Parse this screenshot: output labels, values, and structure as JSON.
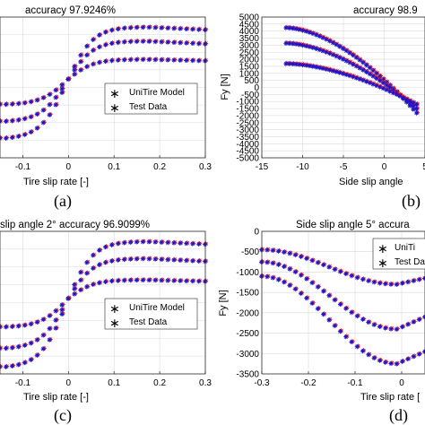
{
  "colors": {
    "model_marker": "#e0101c",
    "test_marker": "#1515d0",
    "grid": "#d9d9d9",
    "axis": "#262626"
  },
  "chart_data": [
    {
      "panel": "(a)",
      "type": "scatter",
      "title": "accuracy  97.9246%",
      "xlabel": "Tire slip rate [-]",
      "ylabel": "",
      "xlim": [
        -0.15,
        0.3
      ],
      "xticks": [
        -0.1,
        0,
        0.1,
        0.2,
        0.3
      ],
      "xtick_labels": [
        "-0.1",
        "0",
        "0.1",
        "0.2",
        "0.3"
      ],
      "grid": true,
      "legend": {
        "position": "center-right",
        "entries": [
          "UniTire Model",
          "Test Data"
        ]
      },
      "series": [
        {
          "name": "UniTire Model",
          "marker": "red-asterisk"
        },
        {
          "name": "Test Data",
          "marker": "blue-asterisk"
        }
      ],
      "curves_normalized": [
        {
          "at_xmin": 0.14,
          "at_x0": 0.56,
          "at_peak": 0.93,
          "at_xmax": 0.91
        },
        {
          "at_xmin": 0.26,
          "at_x0": 0.56,
          "at_peak": 0.83,
          "at_xmax": 0.81
        },
        {
          "at_xmin": 0.38,
          "at_x0": 0.56,
          "at_peak": 0.7,
          "at_xmax": 0.69
        }
      ]
    },
    {
      "panel": "(b)",
      "type": "scatter",
      "title": "accuracy  98.9",
      "xlabel": "Side slip angle",
      "ylabel": "Fy [N]",
      "xlim": [
        -15,
        5
      ],
      "ylim": [
        -5000,
        5000
      ],
      "xticks": [
        -15,
        -10,
        -5,
        0,
        5
      ],
      "yticks": [
        -5000,
        -4500,
        -4000,
        -3500,
        -3000,
        -2500,
        -2000,
        -1500,
        -1000,
        -500,
        0,
        500,
        1000,
        1500,
        2000,
        2500,
        3000,
        3500,
        4000,
        4500,
        5000
      ],
      "grid": true,
      "series": [
        {
          "name": "UniTire Model",
          "marker": "red-asterisk"
        },
        {
          "name": "Test Data",
          "marker": "blue-asterisk"
        }
      ],
      "curves": [
        {
          "x_start": -12,
          "y_start": 4250,
          "x_end": 4,
          "y_end": -1800
        },
        {
          "x_start": -12,
          "y_start": 3150,
          "x_end": 4,
          "y_end": -1500
        },
        {
          "x_start": -12,
          "y_start": 1700,
          "x_end": 4,
          "y_end": -1200
        }
      ]
    },
    {
      "panel": "(c)",
      "type": "scatter",
      "title": "slip angle 2°  accuracy  96.9099%",
      "xlabel": "Tire slip rate [-]",
      "ylabel": "",
      "xlim": [
        -0.15,
        0.3
      ],
      "xticks": [
        -0.1,
        0,
        0.1,
        0.2,
        0.3
      ],
      "xtick_labels": [
        "-0.1",
        "0",
        "0.1",
        "0.2",
        "0.3"
      ],
      "grid": true,
      "legend": {
        "position": "center-right",
        "entries": [
          "UniTire Model",
          "Test Data"
        ]
      },
      "series": [
        {
          "name": "UniTire Model",
          "marker": "red-asterisk"
        },
        {
          "name": "Test Data",
          "marker": "blue-asterisk"
        }
      ],
      "curves_normalized": [
        {
          "at_xmin": 0.05,
          "at_x0": 0.53,
          "at_peak": 0.93,
          "at_xmax": 0.91
        },
        {
          "at_xmin": 0.18,
          "at_x0": 0.53,
          "at_peak": 0.81,
          "at_xmax": 0.79
        },
        {
          "at_xmin": 0.33,
          "at_x0": 0.53,
          "at_peak": 0.66,
          "at_xmax": 0.65
        }
      ]
    },
    {
      "panel": "(d)",
      "type": "scatter",
      "title": "Side slip angle 5°  accura",
      "xlabel": "Tire slip rate [",
      "ylabel": "Fy [N]",
      "xlim": [
        -0.3,
        0.05
      ],
      "ylim": [
        -3500,
        0
      ],
      "xticks": [
        -0.3,
        -0.2,
        -0.1,
        0
      ],
      "xtick_labels": [
        "-0.3",
        "-0.2",
        "-0.1",
        "0"
      ],
      "yticks": [
        -3500,
        -3000,
        -2500,
        -2000,
        -1500,
        -1000,
        -500,
        0
      ],
      "grid": true,
      "legend": {
        "position": "top-right",
        "entries": [
          "UniTi",
          "Test Da"
        ]
      },
      "series": [
        {
          "name": "UniTi",
          "marker": "red-asterisk"
        },
        {
          "name": "Test Da",
          "marker": "blue-asterisk"
        }
      ],
      "curves": [
        {
          "y_start": -450,
          "y_min": -1300,
          "y_end": -1150
        },
        {
          "y_start": -750,
          "y_min": -2400,
          "y_end": -2100
        },
        {
          "y_start": -1100,
          "y_min": -3250,
          "y_end": -2950
        }
      ]
    }
  ]
}
